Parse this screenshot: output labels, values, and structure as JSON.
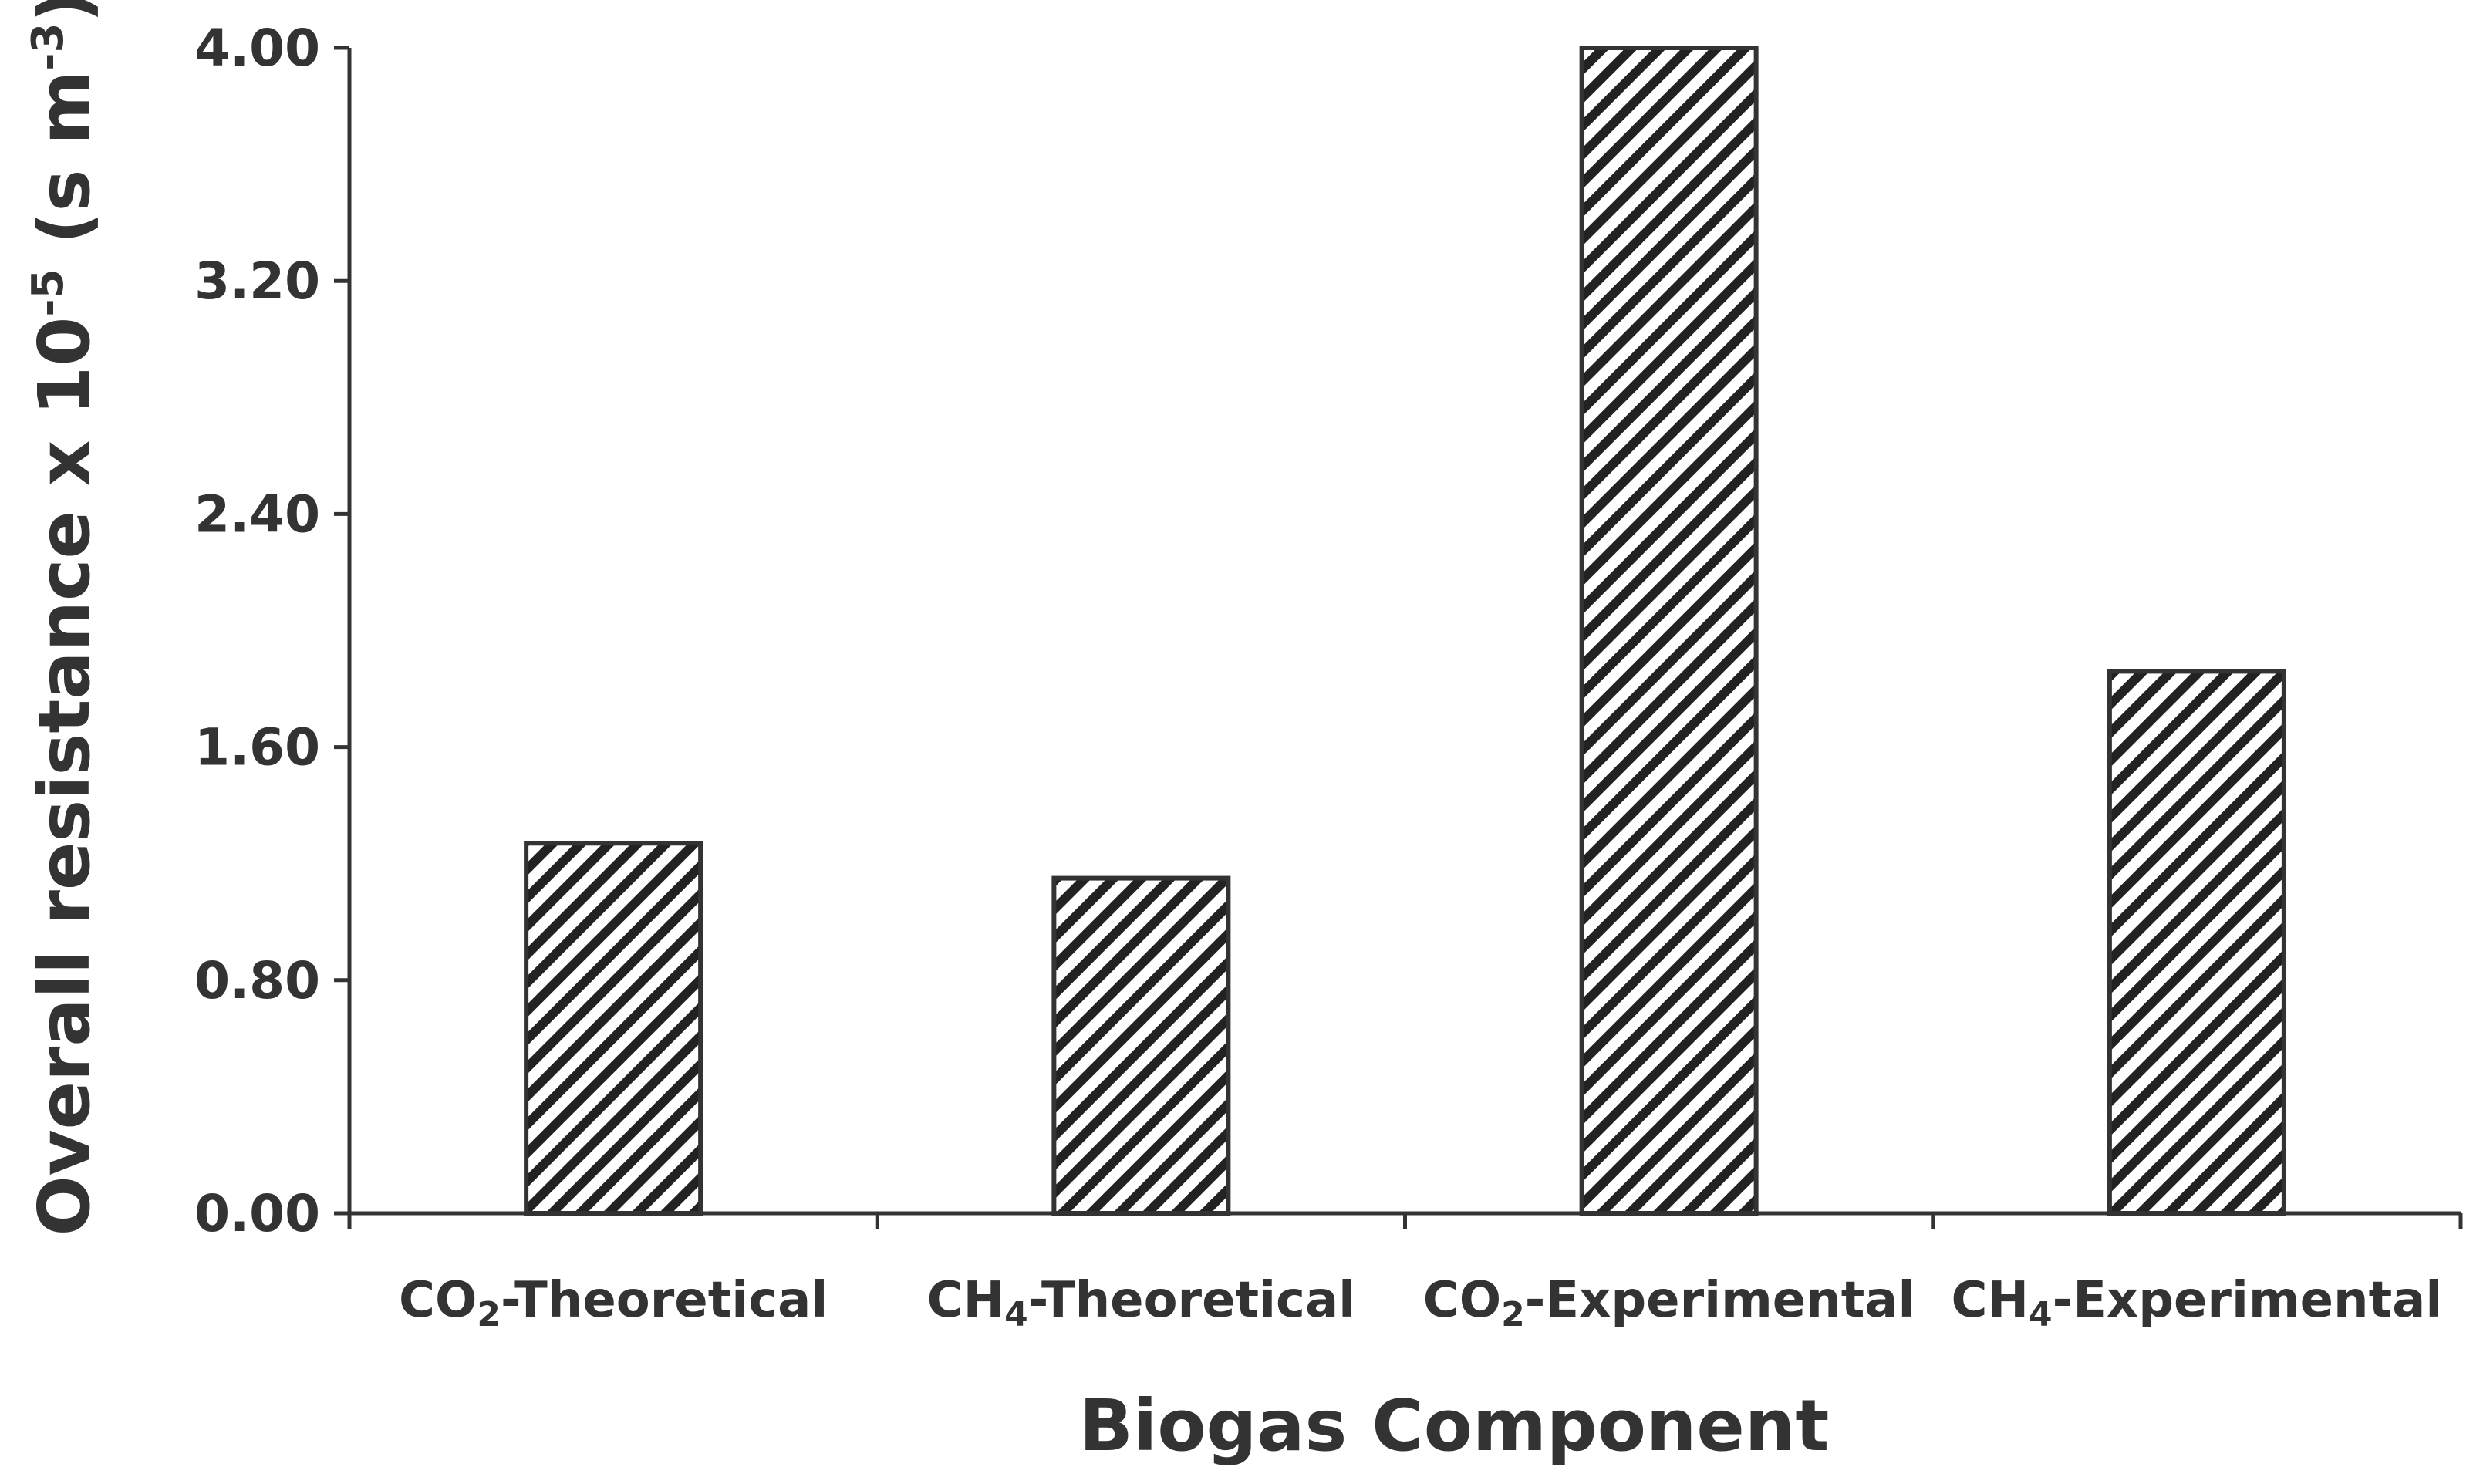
{
  "chart_data": {
    "type": "bar",
    "title": "",
    "xlabel": "Biogas Component",
    "ylabel": {
      "main": "Overall resistance x 10",
      "exp1": "-5",
      "mid": " (s m",
      "exp2": "-3",
      "end": ")"
    },
    "categories": [
      {
        "base": "CO",
        "sub": "2",
        "rest": "-Theoretical"
      },
      {
        "base": "CH",
        "sub": "4",
        "rest": "-Theoretical"
      },
      {
        "base": "CO",
        "sub": "2",
        "rest": "-Experimental"
      },
      {
        "base": "CH",
        "sub": "4",
        "rest": "-Experimental"
      }
    ],
    "values": [
      1.27,
      1.15,
      4.0,
      1.86
    ],
    "ylim": [
      0,
      4.0
    ],
    "yticks": [
      "0.00",
      "0.80",
      "1.60",
      "2.40",
      "3.20",
      "4.00"
    ],
    "grid": false,
    "legend": "none",
    "bar_fill": "diagonal-hatch",
    "colors": {
      "bar_stroke": "#333333",
      "hatch": "#222222",
      "axis": "#333333",
      "text": "#333333"
    }
  }
}
